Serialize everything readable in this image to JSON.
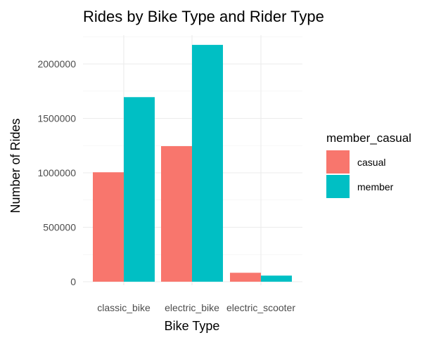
{
  "chart_data": {
    "type": "bar",
    "title": "Rides by Bike Type and Rider Type",
    "xlabel": "Bike Type",
    "ylabel": "Number of Rides",
    "categories": [
      "classic_bike",
      "electric_bike",
      "electric_scooter"
    ],
    "series": [
      {
        "name": "casual",
        "color": "#F8766D",
        "values": [
          1005000,
          1245000,
          82000
        ]
      },
      {
        "name": "member",
        "color": "#00BFC4",
        "values": [
          1695000,
          2175000,
          56000
        ]
      }
    ],
    "ylim": [
      0,
      2270000
    ],
    "yticks": [
      0,
      500000,
      1000000,
      1500000,
      2000000
    ],
    "ytick_labels": [
      "0",
      "500000",
      "1000000",
      "1500000",
      "2000000"
    ],
    "legend": {
      "title": "member_casual",
      "position": "right"
    },
    "grid": true
  }
}
